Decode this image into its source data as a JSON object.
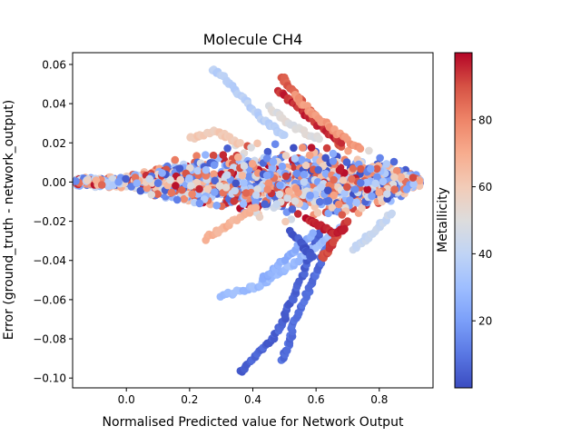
{
  "chart_data": {
    "type": "scatter",
    "title": "Molecule CH4",
    "xlabel": "Normalised Predicted value for Network Output",
    "ylabel": "Error (ground_truth - network_output)",
    "xlim": [
      -0.17,
      0.97
    ],
    "ylim": [
      -0.105,
      0.066
    ],
    "xticks": [
      "0.0",
      "0.2",
      "0.4",
      "0.6",
      "0.8"
    ],
    "xtick_values": [
      0.0,
      0.2,
      0.4,
      0.6,
      0.8
    ],
    "yticks": [
      "0.06",
      "0.04",
      "0.02",
      "0.00",
      "−0.02",
      "−0.04",
      "−0.06",
      "−0.08",
      "−0.10"
    ],
    "ytick_values": [
      0.06,
      0.04,
      0.02,
      0.0,
      -0.02,
      -0.04,
      -0.06,
      -0.08,
      -0.1
    ],
    "grid": false,
    "colorbar": {
      "label": "Metallicity",
      "colormap": "coolwarm",
      "range": [
        0,
        100
      ],
      "ticks": [
        "20",
        "40",
        "60",
        "80"
      ],
      "tick_values": [
        20,
        40,
        60,
        80
      ],
      "colors": [
        "#3b4cc0",
        "#5977e3",
        "#7b9ff9",
        "#9ebeff",
        "#c0d4f5",
        "#dddcdc",
        "#f2cbb7",
        "#f7ac8e",
        "#ee8468",
        "#d65244",
        "#b40426"
      ]
    },
    "series": [
      {
        "trails": [
          {
            "points": [
              [
                0.27,
                0.058
              ],
              [
                0.3,
                0.055
              ],
              [
                0.33,
                0.05
              ],
              [
                0.36,
                0.044
              ],
              [
                0.4,
                0.037
              ],
              [
                0.44,
                0.031
              ],
              [
                0.47,
                0.027
              ],
              [
                0.5,
                0.024
              ]
            ],
            "metallicity": 38
          },
          {
            "points": [
              [
                0.49,
                0.054
              ],
              [
                0.51,
                0.05
              ],
              [
                0.53,
                0.045
              ],
              [
                0.56,
                0.04
              ],
              [
                0.6,
                0.034
              ],
              [
                0.63,
                0.028
              ],
              [
                0.66,
                0.022
              ],
              [
                0.68,
                0.018
              ]
            ],
            "metallicity": 88
          },
          {
            "points": [
              [
                0.48,
                0.046
              ],
              [
                0.52,
                0.041
              ],
              [
                0.56,
                0.036
              ],
              [
                0.6,
                0.03
              ],
              [
                0.64,
                0.025
              ],
              [
                0.68,
                0.02
              ]
            ],
            "metallicity": 95
          },
          {
            "points": [
              [
                0.53,
                0.044
              ],
              [
                0.57,
                0.038
              ],
              [
                0.61,
                0.032
              ],
              [
                0.65,
                0.027
              ],
              [
                0.7,
                0.021
              ],
              [
                0.74,
                0.017
              ]
            ],
            "metallicity": 75
          },
          {
            "points": [
              [
                0.45,
                0.038
              ],
              [
                0.49,
                0.033
              ],
              [
                0.53,
                0.028
              ],
              [
                0.57,
                0.025
              ],
              [
                0.61,
                0.022
              ]
            ],
            "metallicity": 50
          },
          {
            "points": [
              [
                0.36,
                -0.097
              ],
              [
                0.39,
                -0.092
              ],
              [
                0.42,
                -0.087
              ],
              [
                0.45,
                -0.082
              ],
              [
                0.48,
                -0.076
              ],
              [
                0.5,
                -0.07
              ],
              [
                0.51,
                -0.064
              ],
              [
                0.53,
                -0.058
              ],
              [
                0.55,
                -0.05
              ],
              [
                0.57,
                -0.042
              ],
              [
                0.59,
                -0.034
              ],
              [
                0.61,
                -0.026
              ]
            ],
            "metallicity": 5
          },
          {
            "points": [
              [
                0.49,
                -0.091
              ],
              [
                0.51,
                -0.085
              ],
              [
                0.52,
                -0.079
              ],
              [
                0.53,
                -0.072
              ],
              [
                0.55,
                -0.065
              ],
              [
                0.57,
                -0.058
              ],
              [
                0.59,
                -0.05
              ],
              [
                0.61,
                -0.042
              ],
              [
                0.63,
                -0.034
              ],
              [
                0.65,
                -0.026
              ]
            ],
            "metallicity": 8
          },
          {
            "points": [
              [
                0.3,
                -0.058
              ],
              [
                0.35,
                -0.056
              ],
              [
                0.4,
                -0.054
              ],
              [
                0.44,
                -0.051
              ],
              [
                0.48,
                -0.047
              ],
              [
                0.52,
                -0.043
              ],
              [
                0.56,
                -0.038
              ],
              [
                0.6,
                -0.033
              ],
              [
                0.64,
                -0.028
              ],
              [
                0.68,
                -0.023
              ]
            ],
            "metallicity": 30
          },
          {
            "points": [
              [
                0.43,
                -0.05
              ],
              [
                0.47,
                -0.044
              ],
              [
                0.51,
                -0.038
              ],
              [
                0.55,
                -0.032
              ],
              [
                0.59,
                -0.026
              ]
            ],
            "metallicity": 25
          },
          {
            "points": [
              [
                0.62,
                -0.039
              ],
              [
                0.64,
                -0.034
              ],
              [
                0.66,
                -0.029
              ],
              [
                0.68,
                -0.024
              ],
              [
                0.7,
                -0.02
              ]
            ],
            "metallicity": 92
          },
          {
            "points": [
              [
                0.72,
                -0.034
              ],
              [
                0.75,
                -0.03
              ],
              [
                0.78,
                -0.026
              ],
              [
                0.81,
                -0.021
              ],
              [
                0.84,
                -0.016
              ]
            ],
            "metallicity": 42
          },
          {
            "points": [
              [
                0.25,
                -0.029
              ],
              [
                0.29,
                -0.025
              ],
              [
                0.33,
                -0.021
              ],
              [
                0.37,
                -0.017
              ],
              [
                0.41,
                -0.013
              ]
            ],
            "metallicity": 68
          },
          {
            "points": [
              [
                0.2,
                0.022
              ],
              [
                0.24,
                0.024
              ],
              [
                0.28,
                0.026
              ],
              [
                0.32,
                0.023
              ],
              [
                0.36,
                0.02
              ]
            ],
            "metallicity": 60
          },
          {
            "points": [
              [
                0.57,
                -0.018
              ],
              [
                0.6,
                -0.021
              ],
              [
                0.63,
                -0.024
              ],
              [
                0.66,
                -0.026
              ],
              [
                0.69,
                -0.024
              ]
            ],
            "metallicity": 97
          },
          {
            "points": [
              [
                0.52,
                -0.025
              ],
              [
                0.55,
                -0.03
              ],
              [
                0.57,
                -0.035
              ],
              [
                0.59,
                -0.038
              ]
            ],
            "metallicity": 3
          }
        ]
      }
    ],
    "band": {
      "x_range": [
        -0.16,
        0.93
      ],
      "half_width_by_x": [
        [
          -0.16,
          0.0025
        ],
        [
          0.0,
          0.004
        ],
        [
          0.15,
          0.012
        ],
        [
          0.3,
          0.021
        ],
        [
          0.5,
          0.024
        ],
        [
          0.7,
          0.021
        ],
        [
          0.85,
          0.012
        ],
        [
          0.93,
          0.003
        ]
      ]
    }
  }
}
